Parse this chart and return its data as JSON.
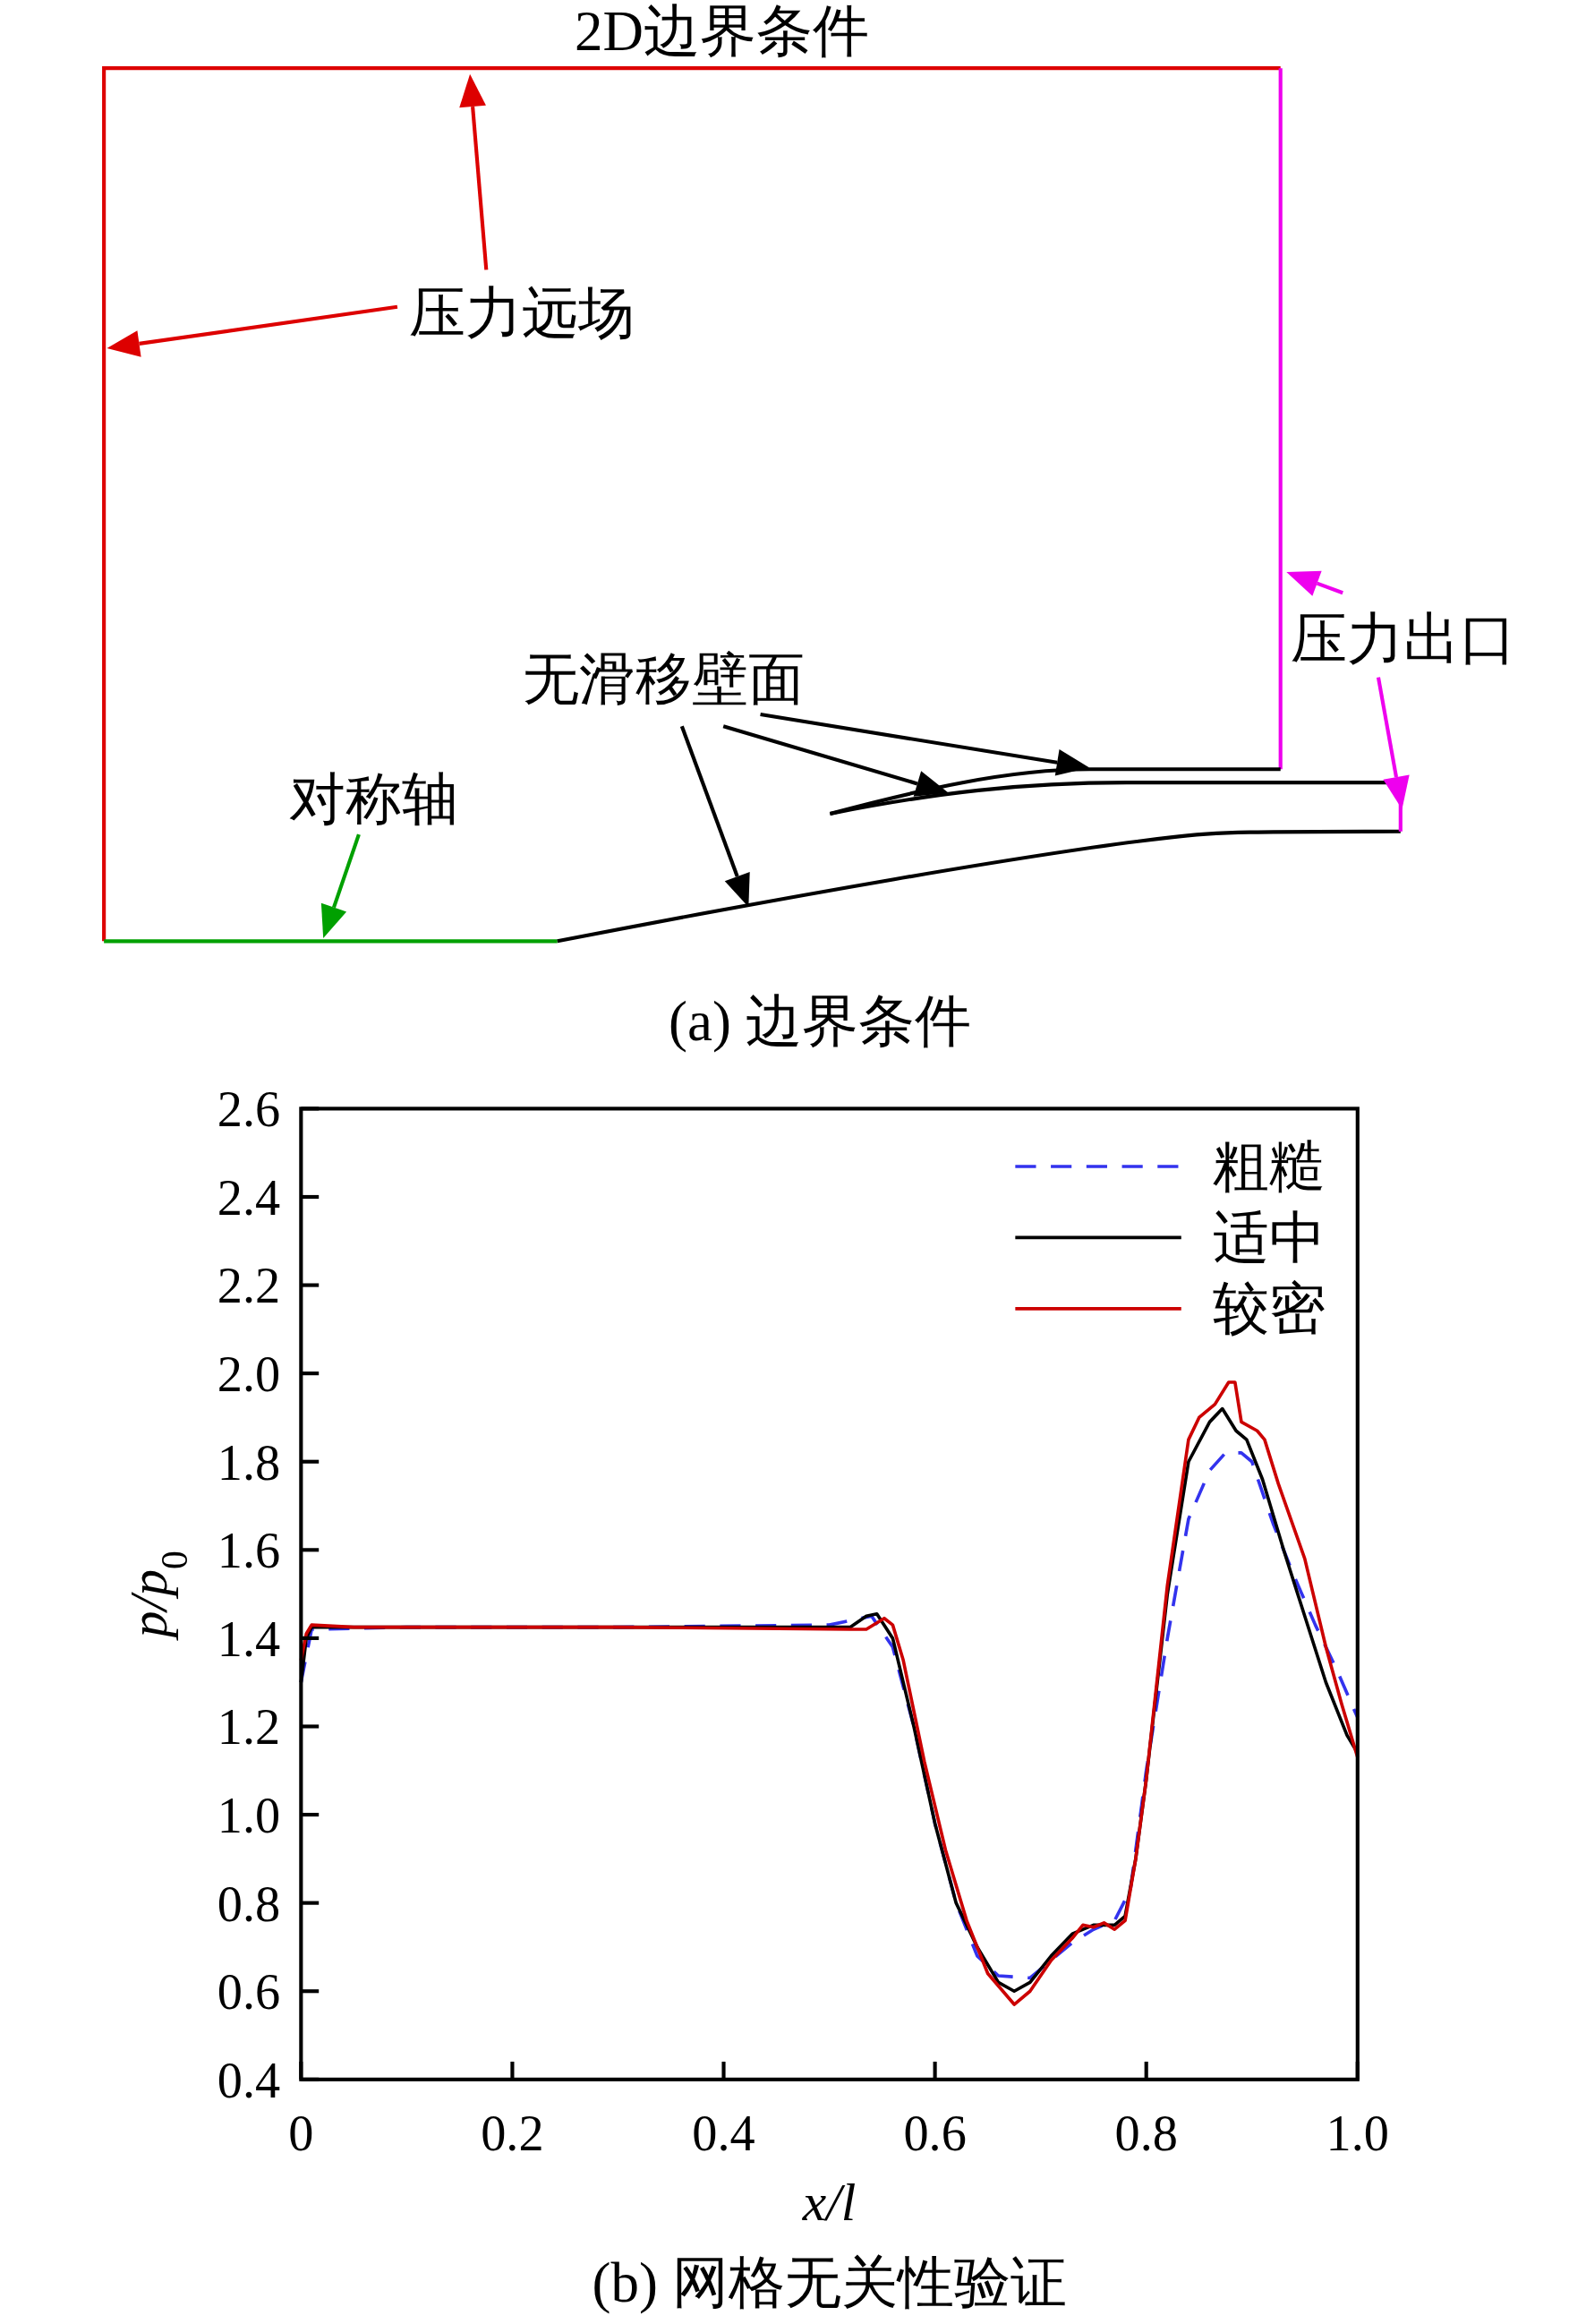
{
  "chart_data": [
    {
      "type": "other",
      "title": "2D边界条件",
      "annotations": [
        "压力远场",
        "压力出口",
        "无滑移壁面",
        "对称轴",
        "(a) 边界条件"
      ]
    },
    {
      "type": "line",
      "xlabel": "x/l",
      "ylabel": "p/p$_{0}$",
      "xlim": [
        0,
        1.0
      ],
      "ylim": [
        0.4,
        2.6
      ],
      "xticks": [
        0,
        0.2,
        0.4,
        0.6,
        0.8,
        {
          "value": 1.0,
          "label": "1.0"
        }
      ],
      "yticks": [
        0.4,
        0.6,
        0.8,
        {
          "value": 1.0,
          "label": "1.0"
        },
        1.2,
        1.4,
        1.6,
        1.8,
        {
          "value": 2.0,
          "label": "2.0"
        },
        2.2,
        2.4,
        2.6
      ],
      "grid": false,
      "legend": "top right",
      "marker": "none",
      "annotations": [
        "(b) 网格无关性验证"
      ],
      "series": [
        {
          "name": "粗糙",
          "color": "#3333ee",
          "line_style": "dashed",
          "x": [
            0,
            0.01,
            0.1,
            0.3,
            0.5,
            0.54,
            0.56,
            0.58,
            0.6,
            0.62,
            0.64,
            0.66,
            0.69,
            0.71,
            0.73,
            0.75,
            0.77,
            0.785,
            0.8,
            0.82,
            0.84,
            0.86,
            0.875,
            0.89,
            0.9,
            0.92,
            0.94,
            0.96,
            0.98,
            1.0
          ],
          "values": [
            1.3,
            1.42,
            1.425,
            1.425,
            1.43,
            1.45,
            1.38,
            1.2,
            0.98,
            0.8,
            0.68,
            0.635,
            0.63,
            0.67,
            0.71,
            0.74,
            0.76,
            0.83,
            1.1,
            1.4,
            1.67,
            1.78,
            1.82,
            1.82,
            1.8,
            1.66,
            1.54,
            1.43,
            1.33,
            1.22
          ]
        },
        {
          "name": "适中",
          "color": "#000000",
          "line_style": "solid",
          "x": [
            0,
            0.005,
            0.01,
            0.05,
            0.3,
            0.52,
            0.535,
            0.545,
            0.56,
            0.58,
            0.6,
            0.62,
            0.64,
            0.66,
            0.675,
            0.69,
            0.71,
            0.73,
            0.75,
            0.77,
            0.78,
            0.79,
            0.8,
            0.82,
            0.84,
            0.86,
            0.872,
            0.885,
            0.895,
            0.91,
            0.93,
            0.95,
            0.97,
            0.99,
            1.0
          ],
          "values": [
            1.3,
            1.4,
            1.425,
            1.425,
            1.425,
            1.425,
            1.45,
            1.455,
            1.4,
            1.2,
            0.98,
            0.8,
            0.7,
            0.62,
            0.6,
            0.62,
            0.68,
            0.73,
            0.75,
            0.75,
            0.77,
            0.9,
            1.08,
            1.5,
            1.8,
            1.89,
            1.92,
            1.87,
            1.85,
            1.76,
            1.6,
            1.45,
            1.3,
            1.18,
            1.14
          ]
        },
        {
          "name": "较密",
          "color": "#cc0000",
          "line_style": "solid",
          "x": [
            0,
            0.005,
            0.01,
            0.05,
            0.3,
            0.52,
            0.535,
            0.552,
            0.56,
            0.57,
            0.59,
            0.61,
            0.63,
            0.65,
            0.675,
            0.69,
            0.71,
            0.73,
            0.74,
            0.75,
            0.76,
            0.77,
            0.78,
            0.79,
            0.8,
            0.82,
            0.84,
            0.85,
            0.865,
            0.878,
            0.884,
            0.89,
            0.905,
            0.912,
            0.925,
            0.95,
            0.97,
            0.985,
            1.0
          ],
          "values": [
            1.35,
            1.41,
            1.43,
            1.425,
            1.425,
            1.42,
            1.42,
            1.445,
            1.43,
            1.35,
            1.12,
            0.92,
            0.76,
            0.64,
            0.57,
            0.6,
            0.67,
            0.72,
            0.75,
            0.745,
            0.755,
            0.74,
            0.76,
            0.9,
            1.08,
            1.52,
            1.85,
            1.9,
            1.93,
            1.98,
            1.98,
            1.89,
            1.87,
            1.85,
            1.75,
            1.58,
            1.38,
            1.25,
            1.13
          ]
        }
      ]
    }
  ]
}
